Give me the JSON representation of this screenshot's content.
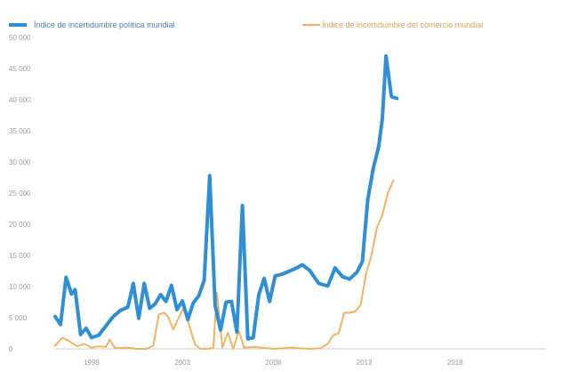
{
  "colors": {
    "background": "#ffffff",
    "series_blue": "#2f8fd6",
    "series_orange": "#f2b35e",
    "axis_line": "#cfcfcf",
    "tick_text": "#9a9a9a"
  },
  "chart_data": {
    "type": "line",
    "title": "",
    "xlabel": "",
    "ylabel": "",
    "ylim": [
      0,
      50000
    ],
    "xlim": [
      1996,
      2023
    ],
    "grid": false,
    "legend": "top",
    "y_ticks": [
      {
        "value": 0,
        "label": "0"
      },
      {
        "value": 5000,
        "label": "5 000"
      },
      {
        "value": 10000,
        "label": "10 000"
      },
      {
        "value": 15000,
        "label": "15 000"
      },
      {
        "value": 20000,
        "label": "20 000"
      },
      {
        "value": 25000,
        "label": "25 000"
      },
      {
        "value": 30000,
        "label": "30 000"
      },
      {
        "value": 35000,
        "label": "35 000"
      },
      {
        "value": 40000,
        "label": "40 000"
      },
      {
        "value": 45000,
        "label": "45 000"
      },
      {
        "value": 50000,
        "label": "50 000"
      }
    ],
    "x_ticks": [
      {
        "value": 1998,
        "label": "1998"
      },
      {
        "value": 2003,
        "label": "2003"
      },
      {
        "value": 2008,
        "label": "2008"
      },
      {
        "value": 2013,
        "label": "2013"
      },
      {
        "value": 2018,
        "label": "2018"
      }
    ],
    "series": [
      {
        "name": "Índice de incertidumbre política mundial",
        "color": "#2f8fd6",
        "points": [
          [
            1996.0,
            5200
          ],
          [
            1996.3,
            3900
          ],
          [
            1996.6,
            11500
          ],
          [
            1996.9,
            8800
          ],
          [
            1997.1,
            9500
          ],
          [
            1997.4,
            2300
          ],
          [
            1997.7,
            3300
          ],
          [
            1998.0,
            1800
          ],
          [
            1998.4,
            2200
          ],
          [
            1998.8,
            3700
          ],
          [
            1999.2,
            5200
          ],
          [
            1999.6,
            6200
          ],
          [
            2000.0,
            6700
          ],
          [
            2000.3,
            10500
          ],
          [
            2000.6,
            4900
          ],
          [
            2000.9,
            10500
          ],
          [
            2001.2,
            6500
          ],
          [
            2001.5,
            7200
          ],
          [
            2001.8,
            8700
          ],
          [
            2002.1,
            7600
          ],
          [
            2002.4,
            10200
          ],
          [
            2002.7,
            6300
          ],
          [
            2003.0,
            7700
          ],
          [
            2003.3,
            4700
          ],
          [
            2003.6,
            7400
          ],
          [
            2003.9,
            8500
          ],
          [
            2004.2,
            11000
          ],
          [
            2004.5,
            27800
          ],
          [
            2004.8,
            7000
          ],
          [
            2005.1,
            3000
          ],
          [
            2005.4,
            7500
          ],
          [
            2005.7,
            7600
          ],
          [
            2006.0,
            2700
          ],
          [
            2006.3,
            23000
          ],
          [
            2006.6,
            1600
          ],
          [
            2006.9,
            1800
          ],
          [
            2007.2,
            8700
          ],
          [
            2007.5,
            11300
          ],
          [
            2007.8,
            7600
          ],
          [
            2008.1,
            11700
          ],
          [
            2008.5,
            12000
          ],
          [
            2008.9,
            12500
          ],
          [
            2009.3,
            13000
          ],
          [
            2009.6,
            13500
          ],
          [
            2010.0,
            12600
          ],
          [
            2010.5,
            10500
          ],
          [
            2011.0,
            10100
          ],
          [
            2011.4,
            13000
          ],
          [
            2011.8,
            11600
          ],
          [
            2012.2,
            11200
          ],
          [
            2012.6,
            12300
          ],
          [
            2012.9,
            14000
          ],
          [
            2013.2,
            24000
          ],
          [
            2013.5,
            29000
          ],
          [
            2013.8,
            32500
          ],
          [
            2014.0,
            37000
          ],
          [
            2014.2,
            47000
          ],
          [
            2014.5,
            40500
          ],
          [
            2014.8,
            40200
          ]
        ]
      },
      {
        "name": "Índice de incertidumbre del comercio mundial",
        "color": "#f2b35e",
        "points": [
          [
            1996.0,
            500
          ],
          [
            1996.4,
            1800
          ],
          [
            1996.8,
            1200
          ],
          [
            1997.2,
            400
          ],
          [
            1997.6,
            800
          ],
          [
            1998.0,
            200
          ],
          [
            1998.4,
            400
          ],
          [
            1998.8,
            300
          ],
          [
            1999.0,
            1500
          ],
          [
            1999.3,
            100
          ],
          [
            2000.0,
            200
          ],
          [
            2000.5,
            0
          ],
          [
            2001.0,
            0
          ],
          [
            2001.4,
            500
          ],
          [
            2001.7,
            5500
          ],
          [
            2002.0,
            5800
          ],
          [
            2002.2,
            5200
          ],
          [
            2002.5,
            3100
          ],
          [
            2002.8,
            5000
          ],
          [
            2003.1,
            6800
          ],
          [
            2003.4,
            3500
          ],
          [
            2003.7,
            700
          ],
          [
            2004.0,
            0
          ],
          [
            2004.4,
            0
          ],
          [
            2004.7,
            200
          ],
          [
            2004.9,
            9000
          ],
          [
            2005.2,
            200
          ],
          [
            2005.5,
            2600
          ],
          [
            2005.8,
            0
          ],
          [
            2006.1,
            2900
          ],
          [
            2006.4,
            200
          ],
          [
            2007.0,
            300
          ],
          [
            2008.0,
            0
          ],
          [
            2009.0,
            200
          ],
          [
            2010.0,
            0
          ],
          [
            2010.6,
            100
          ],
          [
            2011.0,
            800
          ],
          [
            2011.3,
            2200
          ],
          [
            2011.6,
            2500
          ],
          [
            2011.9,
            5800
          ],
          [
            2012.2,
            5800
          ],
          [
            2012.5,
            6000
          ],
          [
            2012.8,
            7000
          ],
          [
            2013.1,
            12000
          ],
          [
            2013.4,
            15000
          ],
          [
            2013.7,
            19500
          ],
          [
            2014.0,
            21500
          ],
          [
            2014.3,
            25000
          ],
          [
            2014.6,
            27000
          ]
        ]
      }
    ]
  }
}
